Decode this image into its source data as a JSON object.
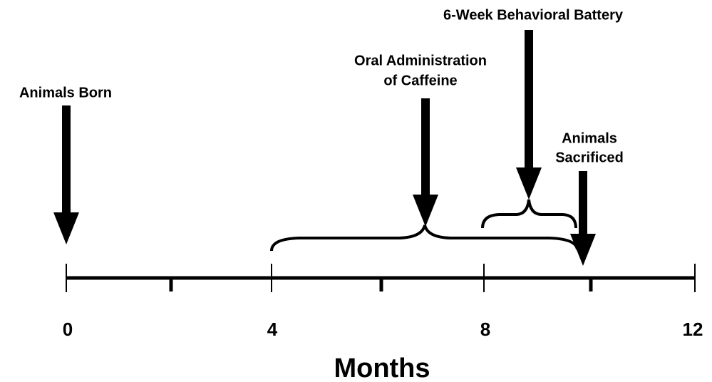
{
  "events": [
    {
      "label": [
        "Animals Born"
      ]
    },
    {
      "label": [
        "Oral Administration",
        "of Caffeine"
      ]
    },
    {
      "label": [
        "6-Week Behavioral Battery"
      ]
    },
    {
      "label": [
        "Animals",
        "Sacrificed"
      ]
    }
  ],
  "axis": {
    "labels": [
      "0",
      "4",
      "8",
      "12"
    ],
    "title": "Months"
  }
}
